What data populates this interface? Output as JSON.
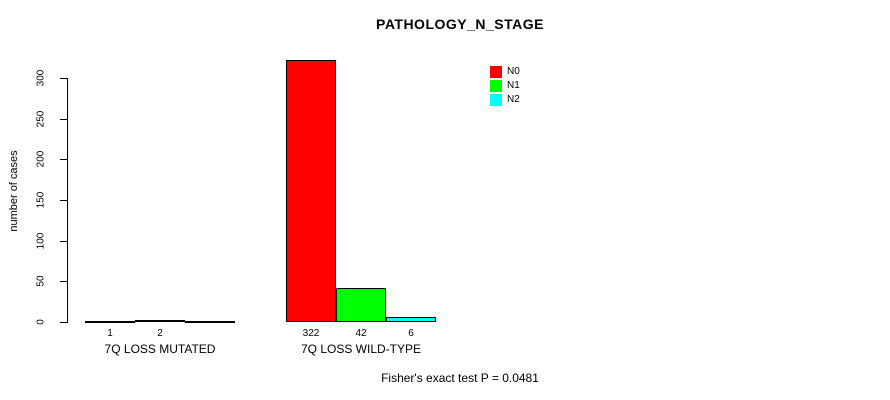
{
  "title": "PATHOLOGY_N_STAGE",
  "footer": "Fisher's exact test P = 0.0481",
  "chart_data": {
    "type": "bar",
    "title": "PATHOLOGY_N_STAGE",
    "xlabel": "",
    "ylabel": "number of cases",
    "ylim": [
      0,
      300
    ],
    "yticks": [
      0,
      50,
      100,
      150,
      200,
      250,
      300
    ],
    "grid": false,
    "categories": [
      "7Q LOSS MUTATED",
      "7Q LOSS WILD-TYPE"
    ],
    "series": [
      {
        "name": "N0",
        "color": "#FF0000",
        "values": [
          1,
          322
        ]
      },
      {
        "name": "N1",
        "color": "#00FF00",
        "values": [
          2,
          42
        ]
      },
      {
        "name": "N2",
        "color": "#00FFFF",
        "values": [
          0,
          6
        ]
      }
    ],
    "bar_value_labels": [
      [
        "1",
        "2",
        ""
      ],
      [
        "322",
        "42",
        "6"
      ]
    ],
    "legend": {
      "position": "top-right",
      "entries": [
        "N0",
        "N1",
        "N2"
      ]
    },
    "annotation": "Fisher's exact test P = 0.0481"
  }
}
